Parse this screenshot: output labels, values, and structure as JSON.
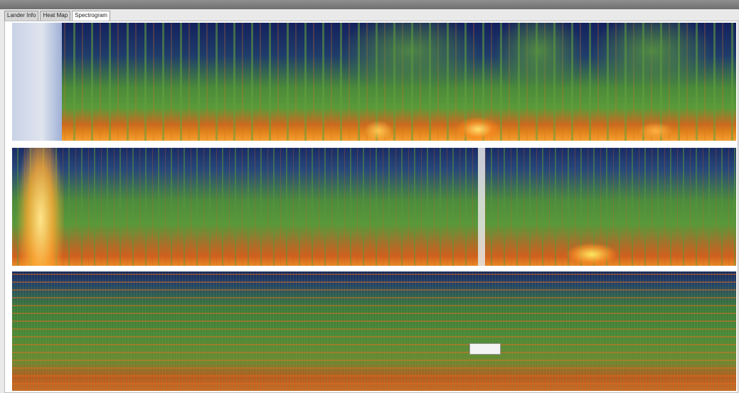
{
  "tabs": [
    "Lander Info",
    "Heat Map",
    "Spectrogram"
  ],
  "active_tab": 2
}
